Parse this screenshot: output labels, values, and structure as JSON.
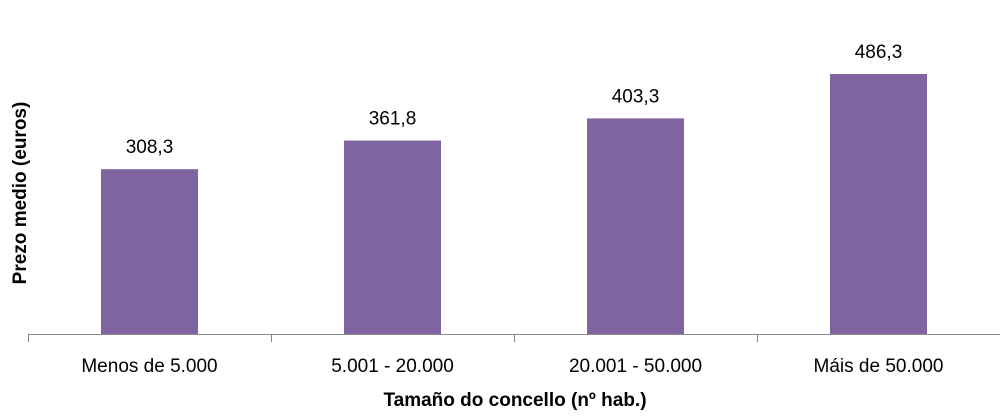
{
  "chart_data": {
    "type": "bar",
    "categories": [
      "Menos de 5.000",
      "5.001 - 20.000",
      "20.001 - 50.000",
      "Máis de 50.000"
    ],
    "values": [
      308.3,
      361.8,
      403.3,
      486.3
    ],
    "value_labels": [
      "308,3",
      "361,8",
      "403,3",
      "486,3"
    ],
    "title": "",
    "xlabel": "Tamaño do concello (nº hab.)",
    "ylabel": "Prezo medio (euros)",
    "ylim": [
      0,
      550
    ],
    "grid": false,
    "legend": "none",
    "bar_color": "#8064A2"
  }
}
